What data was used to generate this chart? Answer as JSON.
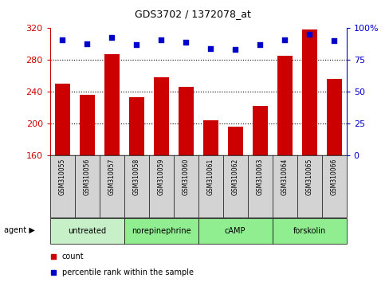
{
  "title": "GDS3702 / 1372078_at",
  "categories": [
    "GSM310055",
    "GSM310056",
    "GSM310057",
    "GSM310058",
    "GSM310059",
    "GSM310060",
    "GSM310061",
    "GSM310062",
    "GSM310063",
    "GSM310064",
    "GSM310065",
    "GSM310066"
  ],
  "bar_values": [
    250,
    236,
    287,
    233,
    258,
    246,
    204,
    196,
    222,
    285,
    318,
    256
  ],
  "percentile_values": [
    91,
    88,
    93,
    87,
    91,
    89,
    84,
    83,
    87,
    91,
    95,
    90
  ],
  "bar_color": "#cc0000",
  "percentile_color": "#0000cc",
  "ylim_left": [
    160,
    320
  ],
  "ylim_right": [
    0,
    100
  ],
  "yticks_left": [
    160,
    200,
    240,
    280,
    320
  ],
  "yticks_right": [
    0,
    25,
    50,
    75,
    100
  ],
  "ylabel_left_color": "#cc0000",
  "ylabel_right_color": "#0000cc",
  "agent_groups": [
    {
      "label": "untreated",
      "start": 0,
      "end": 3,
      "color": "#c8f0c8"
    },
    {
      "label": "norepinephrine",
      "start": 3,
      "end": 6,
      "color": "#90ee90"
    },
    {
      "label": "cAMP",
      "start": 6,
      "end": 9,
      "color": "#90ee90"
    },
    {
      "label": "forskolin",
      "start": 9,
      "end": 12,
      "color": "#90ee90"
    }
  ],
  "sample_bg_color": "#d3d3d3",
  "legend_items": [
    {
      "label": "count",
      "color": "#cc0000"
    },
    {
      "label": "percentile rank within the sample",
      "color": "#0000cc"
    }
  ],
  "bar_width": 0.6,
  "fig_width": 4.83,
  "fig_height": 3.54,
  "fig_dpi": 100
}
